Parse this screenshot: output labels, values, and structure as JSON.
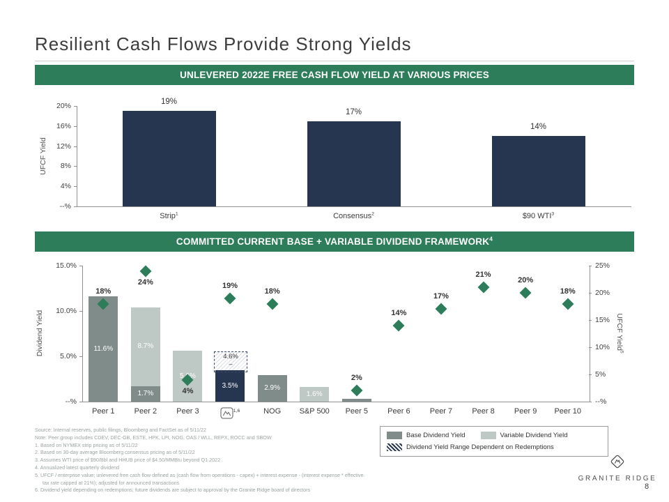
{
  "slide": {
    "title": "Resilient Cash Flows Provide Strong Yields",
    "page_number": "8"
  },
  "colors": {
    "green": "#2D7D5B",
    "navy": "#273650",
    "base_gray": "#7F8C8A",
    "light_gray": "#BEC8C5"
  },
  "chart_data": [
    {
      "type": "bar",
      "title": "UNLEVERED 2022E FREE CASH FLOW YIELD AT VARIOUS PRICES",
      "ylabel": "UFCF Yield",
      "ylim": [
        0,
        20
      ],
      "y_ticks": [
        "20%",
        "16%",
        "12%",
        "8%",
        "4%",
        "--%"
      ],
      "categories": [
        "Strip",
        "Consensus",
        "$90 WTI"
      ],
      "category_sups": [
        "1",
        "2",
        "3"
      ],
      "values": [
        19,
        17,
        14
      ],
      "value_labels": [
        "19%",
        "17%",
        "14%"
      ]
    },
    {
      "type": "combo-stacked-bar-scatter",
      "title": "COMMITTED CURRENT BASE + VARIABLE DIVIDEND FRAMEWORK",
      "title_sup": "4",
      "left_axis": {
        "label": "Dividend Yield",
        "max": 15,
        "ticks": [
          "15.0%",
          "10.0%",
          "5.0%",
          "--%"
        ]
      },
      "right_axis": {
        "label": "UFCF Yield",
        "sup": "5",
        "max": 25,
        "ticks": [
          "25%",
          "20%",
          "15%",
          "10%",
          "5%",
          "--%"
        ]
      },
      "categories": [
        {
          "label": "Peer 1",
          "base": 11.6,
          "base_label": "11.6%",
          "ufcf": 18,
          "ufcf_label": "18%"
        },
        {
          "label": "Peer 2",
          "base": 1.7,
          "base_label": "1.7%",
          "variable": 8.7,
          "variable_label": "8.7%",
          "ufcf": 24,
          "ufcf_label": "24%",
          "ufcf_label_below": true
        },
        {
          "label": "Peer 3",
          "variable": 5.6,
          "variable_label": "5.6%",
          "ufcf": 4,
          "ufcf_label": "4%",
          "ufcf_label_below": true
        },
        {
          "label": "GR",
          "logo": true,
          "sup": "1,6",
          "dividend": 3.5,
          "dividend_label": "3.5%",
          "range_top": 4.6,
          "range_label": "4.6%",
          "range_dash": "–",
          "ufcf": 19,
          "ufcf_label": "19%"
        },
        {
          "label": "NOG",
          "base": 2.9,
          "base_label": "2.9%",
          "ufcf": 18,
          "ufcf_label": "18%"
        },
        {
          "label": "S&P 500",
          "variable": 1.6,
          "variable_label": "1.6%"
        },
        {
          "label": "Peer 5",
          "base": 0.3,
          "ufcf": 2,
          "ufcf_label": "2%"
        },
        {
          "label": "Peer 6",
          "ufcf": 14,
          "ufcf_label": "14%"
        },
        {
          "label": "Peer 7",
          "ufcf": 17,
          "ufcf_label": "17%"
        },
        {
          "label": "Peer 8",
          "ufcf": 21,
          "ufcf_label": "21%"
        },
        {
          "label": "Peer 9",
          "ufcf": 20,
          "ufcf_label": "20%"
        },
        {
          "label": "Peer 10",
          "ufcf": 18,
          "ufcf_label": "18%"
        }
      ]
    }
  ],
  "legend": {
    "items": [
      {
        "label": "Base Dividend Yield",
        "swatch": "base"
      },
      {
        "label": "Variable Dividend Yield",
        "swatch": "variable"
      },
      {
        "label": "Dividend Yield Range Dependent on Redemptions",
        "swatch": "range"
      }
    ]
  },
  "footnotes": [
    "Source: Internal reserves, public filings, Bloomberg and FactSet as of 5/11/22",
    "Note: Peer group includes CDEV, DEC-GB, ESTE, HPK, LPI, NOG, OAS / WLL, REPX, ROCC and SBOW",
    "1.  Based on NYMEX strip pricing as of 5/11/22",
    "2.  Based on 30-day average Bloomberg consensus pricing as of 5/11/22",
    "3.  Assumes WTI price of $90/Bbl and HHUB price of $4.50/MMBtu beyond Q1 2022",
    "4.  Annualized latest quarterly dividend",
    "5.  UFCF / enterprise value; unlevered free cash flow defined as (cash flow from operations - capex) + interest expense - (interest expense * effective tax rate capped at 21%); adjusted for announced transactions",
    "6.  Dividend yield depending on redemptions; future dividends are subject to approval by the Granite Ridge board of directors"
  ],
  "logo": {
    "text": "GRANITE RIDGE"
  }
}
